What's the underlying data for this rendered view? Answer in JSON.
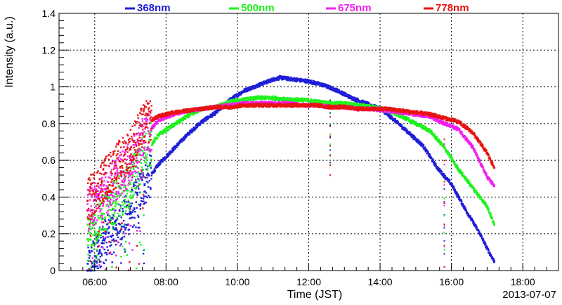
{
  "chart_data": {
    "type": "scatter",
    "xlabel": "Time (JST)",
    "ylabel": "Intensity (a.u.)",
    "date": "2013-07-07",
    "xlim_hours": [
      5.0,
      19.0
    ],
    "ylim": [
      0,
      1.4
    ],
    "x_ticks": [
      "06:00",
      "08:00",
      "10:00",
      "12:00",
      "14:00",
      "16:00",
      "18:00"
    ],
    "y_ticks": [
      "0",
      "0.2",
      "0.4",
      "0.6",
      "0.8",
      "1",
      "1.2",
      "1.4"
    ],
    "grid": true,
    "legend_position": "top",
    "series": [
      {
        "name": "368nm",
        "color": "#1f1fd6",
        "x": [
          5.8,
          6.2,
          6.6,
          7.0,
          7.4,
          7.8,
          8.2,
          8.6,
          9.0,
          9.4,
          9.8,
          10.2,
          10.6,
          11.0,
          11.2,
          11.6,
          12.0,
          12.4,
          12.8,
          13.2,
          13.6,
          14.0,
          14.4,
          14.8,
          15.2,
          15.6,
          16.0,
          16.4,
          16.8,
          17.0,
          17.2
        ],
        "y": [
          0.0,
          0.15,
          0.23,
          0.32,
          0.47,
          0.58,
          0.66,
          0.74,
          0.81,
          0.86,
          0.93,
          0.98,
          1.01,
          1.04,
          1.05,
          1.04,
          1.03,
          1.01,
          0.98,
          0.94,
          0.91,
          0.88,
          0.82,
          0.75,
          0.68,
          0.56,
          0.47,
          0.33,
          0.2,
          0.12,
          0.05
        ]
      },
      {
        "name": "500nm",
        "color": "#1ff21f",
        "x": [
          5.8,
          6.2,
          6.6,
          7.0,
          7.4,
          7.8,
          8.2,
          8.6,
          9.0,
          9.4,
          9.8,
          10.2,
          10.6,
          11.0,
          11.4,
          11.8,
          12.2,
          12.6,
          13.0,
          13.4,
          13.8,
          14.2,
          14.6,
          15.0,
          15.4,
          15.8,
          16.2,
          16.6,
          17.0,
          17.2
        ],
        "y": [
          0.17,
          0.31,
          0.38,
          0.47,
          0.64,
          0.74,
          0.79,
          0.84,
          0.88,
          0.89,
          0.92,
          0.93,
          0.94,
          0.94,
          0.93,
          0.93,
          0.92,
          0.91,
          0.91,
          0.9,
          0.89,
          0.87,
          0.84,
          0.8,
          0.76,
          0.67,
          0.55,
          0.45,
          0.35,
          0.25
        ]
      },
      {
        "name": "675nm",
        "color": "#f21ff2",
        "x": [
          5.8,
          6.2,
          6.6,
          7.0,
          7.4,
          7.8,
          8.2,
          8.6,
          9.0,
          9.4,
          9.8,
          10.2,
          10.6,
          11.0,
          11.4,
          11.8,
          12.2,
          12.6,
          13.0,
          13.4,
          13.8,
          14.2,
          14.6,
          15.0,
          15.4,
          15.8,
          16.2,
          16.6,
          17.0,
          17.2
        ],
        "y": [
          0.33,
          0.4,
          0.5,
          0.58,
          0.73,
          0.82,
          0.85,
          0.87,
          0.88,
          0.89,
          0.9,
          0.91,
          0.91,
          0.91,
          0.91,
          0.9,
          0.9,
          0.89,
          0.89,
          0.88,
          0.88,
          0.87,
          0.86,
          0.85,
          0.84,
          0.8,
          0.77,
          0.67,
          0.51,
          0.46
        ]
      },
      {
        "name": "778nm",
        "color": "#e81313",
        "x": [
          5.8,
          6.2,
          6.6,
          7.0,
          7.4,
          7.8,
          8.2,
          8.6,
          9.0,
          9.4,
          9.8,
          10.2,
          10.6,
          11.0,
          11.4,
          11.8,
          12.2,
          12.6,
          13.0,
          13.4,
          13.8,
          14.2,
          14.6,
          15.0,
          15.4,
          15.8,
          16.2,
          16.6,
          17.0,
          17.2
        ],
        "y": [
          0.38,
          0.48,
          0.57,
          0.66,
          0.8,
          0.84,
          0.86,
          0.87,
          0.88,
          0.89,
          0.89,
          0.9,
          0.9,
          0.9,
          0.9,
          0.9,
          0.9,
          0.89,
          0.89,
          0.88,
          0.88,
          0.88,
          0.87,
          0.86,
          0.85,
          0.83,
          0.81,
          0.75,
          0.64,
          0.56
        ]
      }
    ],
    "dips": [
      {
        "x": 12.6,
        "y_min": 0.52
      },
      {
        "x": 15.8,
        "y_min": 0.02
      }
    ]
  }
}
